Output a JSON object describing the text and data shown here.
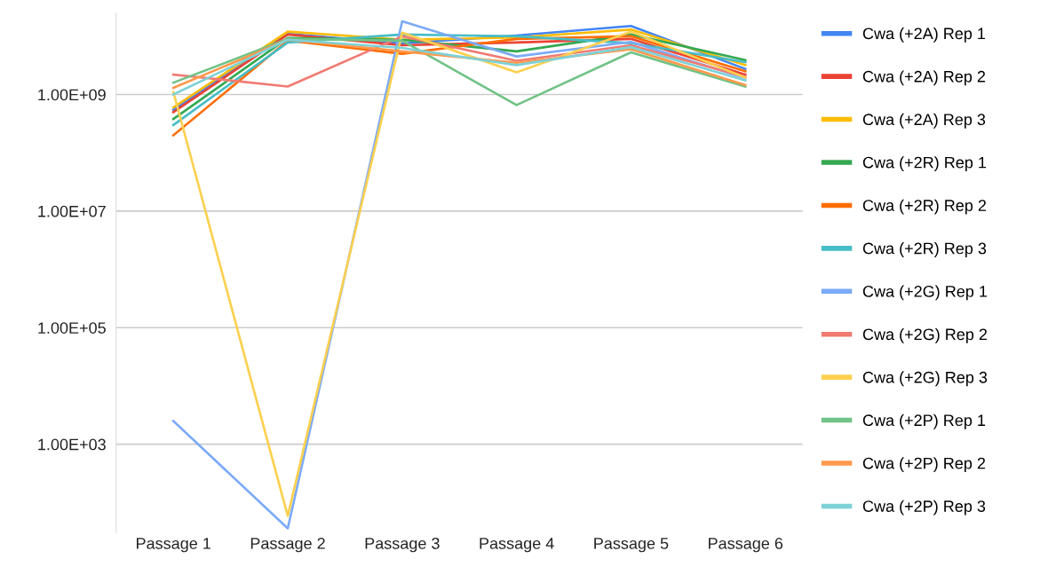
{
  "chart_data": {
    "type": "line",
    "categories": [
      "Passage 1",
      "Passage 2",
      "Passage 3",
      "Passage 4",
      "Passage 5",
      "Passage 6"
    ],
    "log": true,
    "ylim": [
      30,
      25000000000
    ],
    "yticks": [
      {
        "value": 1000,
        "label": "1.00E+03"
      },
      {
        "value": 100000,
        "label": "1.00E+05"
      },
      {
        "value": 10000000,
        "label": "1.00E+07"
      },
      {
        "value": 1000000000,
        "label": "1.00E+09"
      }
    ],
    "grid": "y",
    "legend": "right",
    "marker": "none",
    "line_style": "solid",
    "series": [
      {
        "name": "Cwa (+2A) Rep 1",
        "color": "#4285f4",
        "values": [
          550000000,
          11000000000,
          7500000000,
          10300000000,
          15000000000,
          2750000000
        ]
      },
      {
        "name": "Cwa (+2A) Rep 2",
        "color": "#ea4335",
        "values": [
          500000000,
          10700000000,
          7000000000,
          7800000000,
          9000000000,
          2200000000
        ]
      },
      {
        "name": "Cwa (+2A) Rep 3",
        "color": "#fbbc04",
        "values": [
          600000000,
          12000000000,
          8700000000,
          9500000000,
          13000000000,
          3200000000
        ]
      },
      {
        "name": "Cwa (+2R) Rep 1",
        "color": "#34a853",
        "values": [
          380000000,
          9300000000,
          8700000000,
          5500000000,
          10700000000,
          3900000000
        ]
      },
      {
        "name": "Cwa (+2R) Rep 2",
        "color": "#ff6d01",
        "values": [
          200000000,
          8400000000,
          5000000000,
          9000000000,
          10000000000,
          2500000000
        ]
      },
      {
        "name": "Cwa (+2R) Rep 3",
        "color": "#46bdc6",
        "values": [
          300000000,
          7800000000,
          10700000000,
          10000000000,
          7600000000,
          3600000000
        ]
      },
      {
        "name": "Cwa (+2G) Rep 1",
        "color": "#7baaf7",
        "values": [
          2500,
          36,
          18000000000,
          4500000000,
          8000000000,
          1900000000
        ]
      },
      {
        "name": "Cwa (+2G) Rep 2",
        "color": "#f07b72",
        "values": [
          2200000000,
          1370000000,
          10000000000,
          3800000000,
          7000000000,
          2000000000
        ]
      },
      {
        "name": "Cwa (+2G) Rep 3",
        "color": "#fcd04f",
        "values": [
          1100000000,
          59,
          11500000000,
          2400000000,
          12000000000,
          1950000000
        ]
      },
      {
        "name": "Cwa (+2P) Rep 1",
        "color": "#71c287",
        "values": [
          1600000000,
          9000000000,
          8400000000,
          660000000,
          5300000000,
          1370000000
        ]
      },
      {
        "name": "Cwa (+2P) Rep 2",
        "color": "#ff994d",
        "values": [
          1300000000,
          8700000000,
          5500000000,
          3500000000,
          6000000000,
          1450000000
        ]
      },
      {
        "name": "Cwa (+2P) Rep 3",
        "color": "#7ed1d7",
        "values": [
          1000000000,
          8700000000,
          6300000000,
          3200000000,
          6500000000,
          1750000000
        ]
      }
    ]
  }
}
